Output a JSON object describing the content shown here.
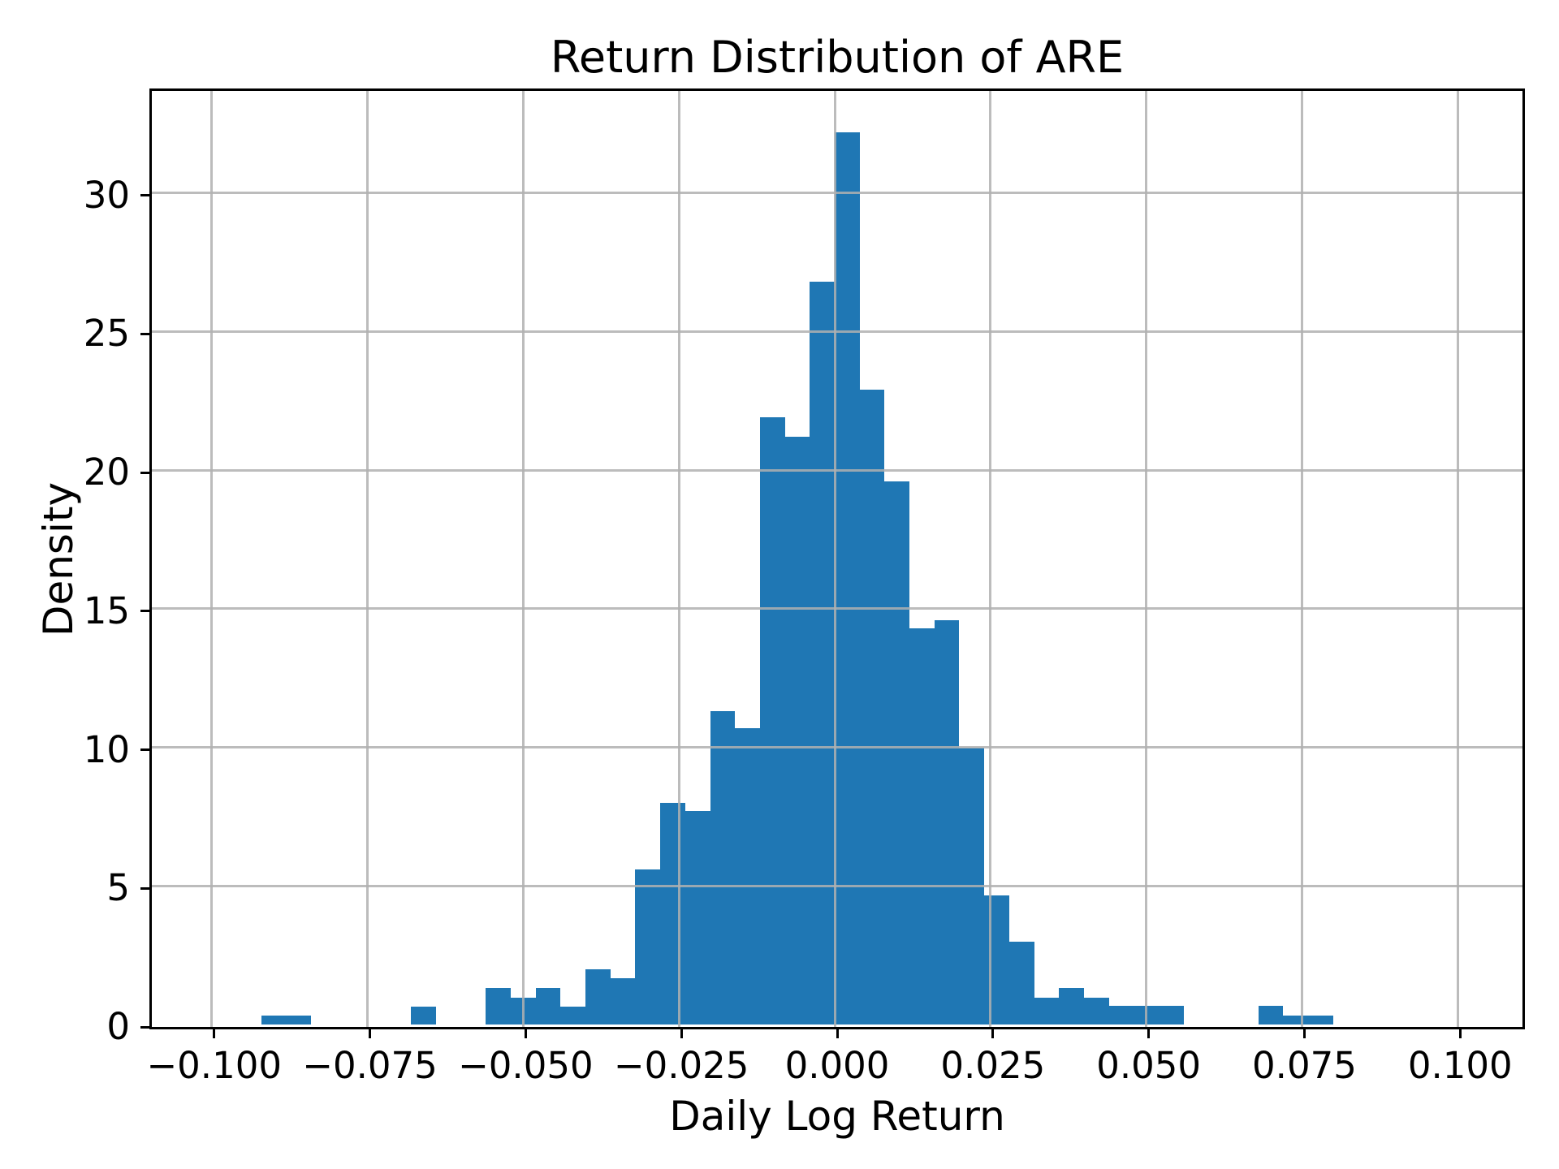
{
  "figure": {
    "title": "Return Distribution of ARE",
    "xlabel": "Daily Log Return",
    "ylabel": "Density",
    "bar_color": "#1f77b4",
    "grid_color": "#b0b0b0",
    "spine_color": "#000000",
    "text_color": "#000000",
    "background_color": "#ffffff"
  },
  "chart_data": {
    "type": "bar",
    "subtype": "histogram",
    "title": "Return Distribution of ARE",
    "xlabel": "Daily Log Return",
    "ylabel": "Density",
    "xlim": [
      -0.11,
      0.11
    ],
    "ylim": [
      0,
      33.77
    ],
    "grid": true,
    "grid_above_bars": true,
    "legend": "none",
    "bin_width": 0.004,
    "x_ticks": [
      {
        "value": -0.1,
        "label": "−0.100"
      },
      {
        "value": -0.075,
        "label": "−0.075"
      },
      {
        "value": -0.05,
        "label": "−0.050"
      },
      {
        "value": -0.025,
        "label": "−0.025"
      },
      {
        "value": 0.0,
        "label": "0.000"
      },
      {
        "value": 0.025,
        "label": "0.025"
      },
      {
        "value": 0.05,
        "label": "0.050"
      },
      {
        "value": 0.075,
        "label": "0.075"
      },
      {
        "value": 0.1,
        "label": "0.100"
      }
    ],
    "y_ticks": [
      {
        "value": 0,
        "label": "0"
      },
      {
        "value": 5,
        "label": "5"
      },
      {
        "value": 10,
        "label": "10"
      },
      {
        "value": 15,
        "label": "15"
      },
      {
        "value": 20,
        "label": "20"
      },
      {
        "value": 25,
        "label": "25"
      },
      {
        "value": 30,
        "label": "30"
      }
    ],
    "bins": [
      {
        "x0": -0.092,
        "x1": -0.088,
        "density": 0.32
      },
      {
        "x0": -0.088,
        "x1": -0.084,
        "density": 0.32
      },
      {
        "x0": -0.084,
        "x1": -0.08,
        "density": 0
      },
      {
        "x0": -0.08,
        "x1": -0.076,
        "density": 0
      },
      {
        "x0": -0.076,
        "x1": -0.072,
        "density": 0
      },
      {
        "x0": -0.072,
        "x1": -0.068,
        "density": 0
      },
      {
        "x0": -0.068,
        "x1": -0.064,
        "density": 0.65
      },
      {
        "x0": -0.064,
        "x1": -0.06,
        "density": 0
      },
      {
        "x0": -0.06,
        "x1": -0.056,
        "density": 0
      },
      {
        "x0": -0.056,
        "x1": -0.052,
        "density": 1.32
      },
      {
        "x0": -0.052,
        "x1": -0.048,
        "density": 0.98
      },
      {
        "x0": -0.048,
        "x1": -0.044,
        "density": 1.32
      },
      {
        "x0": -0.044,
        "x1": -0.04,
        "density": 0.64
      },
      {
        "x0": -0.04,
        "x1": -0.036,
        "density": 1.98
      },
      {
        "x0": -0.036,
        "x1": -0.032,
        "density": 1.66
      },
      {
        "x0": -0.032,
        "x1": -0.028,
        "density": 5.6
      },
      {
        "x0": -0.028,
        "x1": -0.024,
        "density": 8.0
      },
      {
        "x0": -0.024,
        "x1": -0.02,
        "density": 7.7
      },
      {
        "x0": -0.02,
        "x1": -0.016,
        "density": 11.3
      },
      {
        "x0": -0.016,
        "x1": -0.012,
        "density": 10.7
      },
      {
        "x0": -0.012,
        "x1": -0.008,
        "density": 21.9
      },
      {
        "x0": -0.008,
        "x1": -0.004,
        "density": 21.2
      },
      {
        "x0": -0.004,
        "x1": 0.0,
        "density": 26.8
      },
      {
        "x0": 0.0,
        "x1": 0.004,
        "density": 32.2
      },
      {
        "x0": 0.004,
        "x1": 0.008,
        "density": 22.9
      },
      {
        "x0": 0.008,
        "x1": 0.012,
        "density": 19.6
      },
      {
        "x0": 0.012,
        "x1": 0.016,
        "density": 14.3
      },
      {
        "x0": 0.016,
        "x1": 0.02,
        "density": 14.6
      },
      {
        "x0": 0.02,
        "x1": 0.024,
        "density": 10.0
      },
      {
        "x0": 0.024,
        "x1": 0.028,
        "density": 4.65
      },
      {
        "x0": 0.028,
        "x1": 0.032,
        "density": 3.0
      },
      {
        "x0": 0.032,
        "x1": 0.036,
        "density": 0.98
      },
      {
        "x0": 0.036,
        "x1": 0.04,
        "density": 1.32
      },
      {
        "x0": 0.04,
        "x1": 0.044,
        "density": 0.98
      },
      {
        "x0": 0.044,
        "x1": 0.048,
        "density": 0.66
      },
      {
        "x0": 0.048,
        "x1": 0.052,
        "density": 0.66
      },
      {
        "x0": 0.052,
        "x1": 0.056,
        "density": 0.66
      },
      {
        "x0": 0.056,
        "x1": 0.06,
        "density": 0
      },
      {
        "x0": 0.06,
        "x1": 0.064,
        "density": 0
      },
      {
        "x0": 0.064,
        "x1": 0.068,
        "density": 0
      },
      {
        "x0": 0.068,
        "x1": 0.072,
        "density": 0.68
      },
      {
        "x0": 0.072,
        "x1": 0.076,
        "density": 0.32
      },
      {
        "x0": 0.076,
        "x1": 0.08,
        "density": 0.32
      }
    ]
  }
}
